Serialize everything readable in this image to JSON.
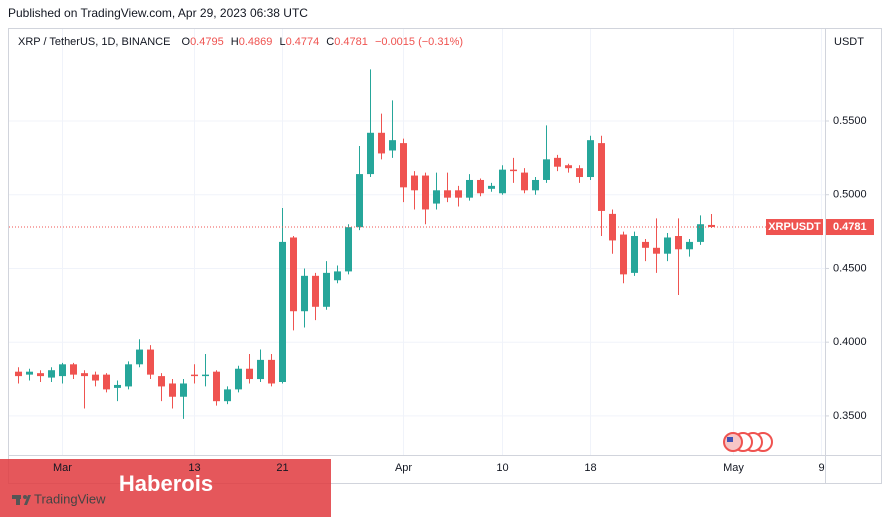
{
  "published": "Published on TradingView.com, Apr 29, 2023 06:38 UTC",
  "watermark": "Haberois",
  "logo": "TradingView",
  "chart_data": {
    "type": "candlestick",
    "symbol": "XRP / TetherUS, 1D, BINANCE",
    "ohlc_prefixes": [
      "O",
      "H",
      "L",
      "C"
    ],
    "change": "−0.0015 (−0.31%)",
    "currency": "USDT",
    "symbol_tag": "XRPUSDT",
    "up_color": "#26a69a",
    "down_color": "#ef5350",
    "categories": [
      null,
      null,
      null,
      null,
      "Mar",
      null,
      null,
      null,
      null,
      null,
      null,
      null,
      null,
      null,
      null,
      null,
      "13",
      null,
      null,
      null,
      null,
      null,
      null,
      null,
      "21",
      null,
      null,
      null,
      null,
      null,
      null,
      null,
      null,
      null,
      null,
      "Apr",
      null,
      null,
      null,
      null,
      null,
      null,
      null,
      null,
      "10",
      null,
      null,
      null,
      null,
      null,
      null,
      null,
      "18",
      null,
      null,
      null,
      null,
      null,
      null,
      null,
      null,
      null,
      null,
      null,
      null,
      "May",
      null,
      null,
      null,
      null,
      null,
      null,
      null,
      "9"
    ],
    "open": [
      0.38,
      0.378,
      0.379,
      0.376,
      0.377,
      0.385,
      0.379,
      0.378,
      0.378,
      0.369,
      0.37,
      0.385,
      0.395,
      0.377,
      0.372,
      0.363,
      0.378,
      0.377,
      0.38,
      0.36,
      0.368,
      0.382,
      0.375,
      0.388,
      0.373,
      0.471,
      0.421,
      0.445,
      0.424,
      0.442,
      0.448,
      0.478,
      0.514,
      0.542,
      0.53,
      0.535,
      0.513,
      0.513,
      0.494,
      0.503,
      0.503,
      0.498,
      0.51,
      0.504,
      0.501,
      0.517,
      0.515,
      0.503,
      0.51,
      0.525,
      0.52,
      0.518,
      0.512,
      0.535,
      0.487,
      0.473,
      0.447,
      0.468,
      0.464,
      0.46,
      0.472,
      0.463,
      0.468,
      0.4795,
      null,
      null,
      null,
      null,
      null,
      null,
      null,
      null,
      null,
      null
    ],
    "high": [
      0.383,
      0.382,
      0.381,
      0.383,
      0.386,
      0.386,
      0.381,
      0.38,
      0.379,
      0.374,
      0.387,
      0.402,
      0.398,
      0.379,
      0.375,
      0.375,
      0.385,
      0.392,
      0.381,
      0.37,
      0.384,
      0.392,
      0.395,
      0.392,
      0.491,
      0.472,
      0.45,
      0.447,
      0.455,
      0.452,
      0.48,
      0.533,
      0.585,
      0.555,
      0.564,
      0.538,
      0.516,
      0.515,
      0.515,
      0.515,
      0.506,
      0.514,
      0.511,
      0.508,
      0.52,
      0.525,
      0.518,
      0.512,
      0.547,
      0.527,
      0.521,
      0.52,
      0.54,
      0.54,
      0.49,
      0.475,
      0.475,
      0.47,
      0.484,
      0.474,
      0.484,
      0.47,
      0.486,
      0.4869,
      null,
      null,
      null,
      null,
      null,
      null,
      null,
      null,
      null,
      null
    ],
    "low": [
      0.372,
      0.374,
      0.373,
      0.373,
      0.372,
      0.375,
      0.355,
      0.37,
      0.366,
      0.36,
      0.368,
      0.383,
      0.375,
      0.36,
      0.355,
      0.348,
      0.372,
      0.37,
      0.357,
      0.358,
      0.366,
      0.372,
      0.373,
      0.37,
      0.372,
      0.408,
      0.41,
      0.415,
      0.422,
      0.44,
      0.446,
      0.476,
      0.512,
      0.524,
      0.525,
      0.495,
      0.49,
      0.48,
      0.49,
      0.495,
      0.492,
      0.496,
      0.499,
      0.502,
      0.5,
      0.508,
      0.501,
      0.5,
      0.508,
      0.516,
      0.515,
      0.508,
      0.51,
      0.472,
      0.46,
      0.44,
      0.445,
      0.455,
      0.447,
      0.455,
      0.432,
      0.458,
      0.466,
      0.4774,
      null,
      null,
      null,
      null,
      null,
      null,
      null,
      null,
      null,
      null
    ],
    "close": [
      0.377,
      0.38,
      0.377,
      0.381,
      0.385,
      0.378,
      0.377,
      0.374,
      0.368,
      0.371,
      0.385,
      0.395,
      0.378,
      0.37,
      0.363,
      0.372,
      0.377,
      0.378,
      0.36,
      0.368,
      0.382,
      0.375,
      0.388,
      0.372,
      0.468,
      0.421,
      0.445,
      0.424,
      0.447,
      0.448,
      0.478,
      0.514,
      0.542,
      0.528,
      0.537,
      0.505,
      0.503,
      0.49,
      0.503,
      0.498,
      0.498,
      0.51,
      0.501,
      0.506,
      0.517,
      0.516,
      0.503,
      0.51,
      0.524,
      0.519,
      0.518,
      0.512,
      0.537,
      0.489,
      0.469,
      0.446,
      0.472,
      0.464,
      0.46,
      0.471,
      0.463,
      0.468,
      0.48,
      0.4781,
      null,
      null,
      null,
      null,
      null,
      null,
      null,
      null,
      null,
      null
    ],
    "ylim": [
      0.3235,
      0.6117
    ],
    "yticks": [
      {
        "value": 0.35,
        "label": "0.3500"
      },
      {
        "value": 0.4,
        "label": "0.4000"
      },
      {
        "value": 0.45,
        "label": "0.4500"
      },
      {
        "value": 0.5,
        "label": "0.5000"
      },
      {
        "value": 0.55,
        "label": "0.5500"
      }
    ],
    "grid": true
  }
}
